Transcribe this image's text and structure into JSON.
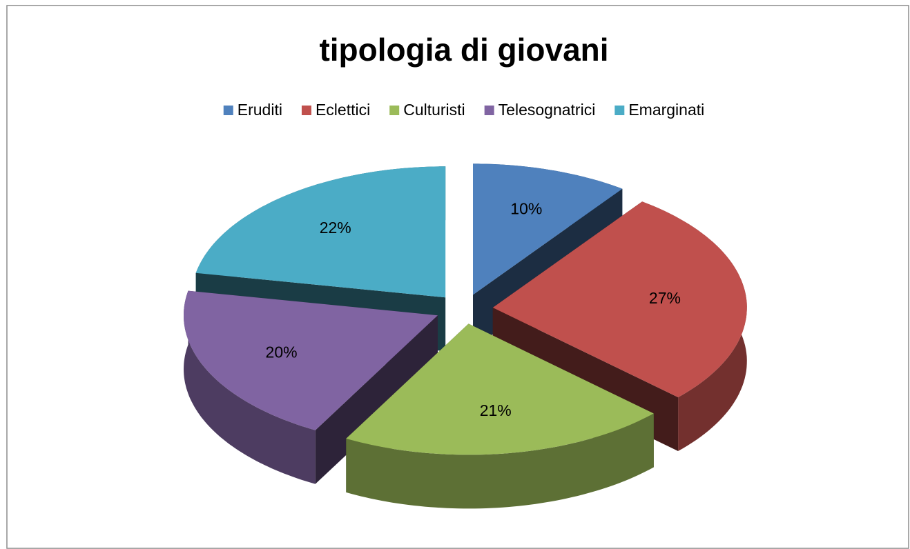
{
  "chart_data": {
    "type": "pie",
    "title": "tipologia di giovani",
    "categories": [
      "Eruditi",
      "Eclettici",
      "Culturisti",
      "Telesognatrici",
      "Emarginati"
    ],
    "values": [
      10,
      27,
      21,
      20,
      22
    ],
    "value_labels": [
      "10%",
      "27%",
      "21%",
      "20%",
      "22%"
    ],
    "colors": [
      "#4f81bd",
      "#c0504d",
      "#9bbb59",
      "#8064a2",
      "#4bacc6"
    ],
    "legend": "top"
  }
}
